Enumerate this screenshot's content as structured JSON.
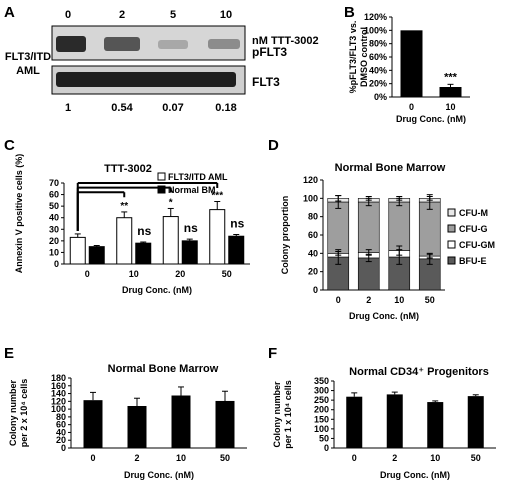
{
  "panels": {
    "A": {
      "letter": "A",
      "conc_header": [
        "0",
        "2",
        "5",
        "10"
      ],
      "conc_unit": "nM TTT-3002",
      "cell_label_line1": "FLT3/ITD",
      "cell_label_line2": "AML",
      "band_labels": [
        "pFLT3",
        "FLT3"
      ],
      "ratios": [
        "1",
        "0.54",
        "0.07",
        "0.18"
      ]
    },
    "B": {
      "letter": "B"
    },
    "C": {
      "letter": "C"
    },
    "D": {
      "letter": "D"
    },
    "E": {
      "letter": "E"
    },
    "F": {
      "letter": "F"
    }
  },
  "chart_data": [
    {
      "id": "B",
      "type": "bar",
      "ylabel_line1": "%pFLT3/FLT3 vs.",
      "ylabel_line2": "DMSO control",
      "xlabel": "Drug Conc. (nM)",
      "categories": [
        "0",
        "10"
      ],
      "values": [
        100,
        15
      ],
      "errors": [
        0,
        4
      ],
      "ylim": [
        0,
        120
      ],
      "yticks": [
        "0%",
        "20%",
        "40%",
        "60%",
        "80%",
        "100%",
        "120%"
      ],
      "annotations": [
        "",
        "***"
      ],
      "bar_color": "#000000"
    },
    {
      "id": "C",
      "type": "bar",
      "title": "TTT-3002",
      "ylabel": "Annexin V positive cells (%)",
      "xlabel": "Drug Conc. (nM)",
      "categories": [
        "0",
        "10",
        "20",
        "50"
      ],
      "ylim": [
        0,
        70
      ],
      "yticks": [
        "0",
        "10",
        "20",
        "30",
        "40",
        "50",
        "60",
        "70"
      ],
      "series": [
        {
          "name": "FLT3/ITD AML",
          "values": [
            23,
            40,
            41,
            47
          ],
          "errors": [
            3,
            5,
            7,
            7
          ],
          "color": "#ffffff",
          "annotations": [
            "",
            "**",
            "*",
            "***"
          ]
        },
        {
          "name": "Normal BM",
          "values": [
            15,
            18,
            20,
            24
          ],
          "errors": [
            1,
            1,
            1.5,
            1.5
          ],
          "color": "#000000",
          "annotations": [
            "",
            "ns",
            "ns",
            "ns"
          ]
        }
      ]
    },
    {
      "id": "D",
      "type": "bar",
      "title": "Normal Bone Marrow",
      "ylabel": "Colony proportion",
      "xlabel": "Drug Conc. (nM)",
      "categories": [
        "0",
        "2",
        "10",
        "50"
      ],
      "ylim": [
        0,
        120
      ],
      "yticks": [
        "0",
        "20",
        "40",
        "60",
        "80",
        "100",
        "120"
      ],
      "stacked": true,
      "series": [
        {
          "name": "BFU-E",
          "values": [
            36,
            35,
            36,
            34
          ],
          "errors": [
            8,
            4,
            8,
            6
          ],
          "color": "#5a5a5a"
        },
        {
          "name": "CFU-GM",
          "values": [
            4,
            6,
            7,
            3
          ],
          "errors": [
            2,
            3,
            5,
            2
          ],
          "color": "#ffffff"
        },
        {
          "name": "CFU-G",
          "values": [
            56,
            55,
            53,
            59
          ],
          "errors": [
            7,
            4,
            4,
            8
          ],
          "color": "#9e9e9e"
        },
        {
          "name": "CFU-M",
          "values": [
            4,
            4,
            4,
            4
          ],
          "errors": [
            3,
            2,
            2,
            2
          ],
          "color": "#e8e8e8"
        }
      ],
      "legend_order": [
        "CFU-M",
        "CFU-G",
        "CFU-GM",
        "BFU-E"
      ]
    },
    {
      "id": "E",
      "type": "bar",
      "title": "Normal Bone Marrow",
      "ylabel_line1": "Colony number",
      "ylabel_line2": "per 2 x 10⁴ cells",
      "xlabel": "Drug Conc. (nM)",
      "categories": [
        "0",
        "2",
        "10",
        "50"
      ],
      "values": [
        123,
        108,
        135,
        121
      ],
      "errors": [
        20,
        20,
        22,
        25
      ],
      "ylim": [
        0,
        180
      ],
      "yticks": [
        "0",
        "20",
        "40",
        "60",
        "80",
        "100",
        "120",
        "140",
        "160",
        "180"
      ],
      "bar_color": "#000000"
    },
    {
      "id": "F",
      "type": "bar",
      "title": "Normal CD34⁺ Progenitors",
      "ylabel_line1": "Colony number",
      "ylabel_line2": "per 1 x 10⁴ cells",
      "xlabel": "Drug Conc. (nM)",
      "categories": [
        "0",
        "2",
        "10",
        "50"
      ],
      "values": [
        268,
        280,
        240,
        271
      ],
      "errors": [
        20,
        12,
        6,
        7
      ],
      "ylim": [
        0,
        350
      ],
      "yticks": [
        "0",
        "50",
        "100",
        "150",
        "200",
        "250",
        "300",
        "350"
      ],
      "bar_color": "#000000"
    }
  ]
}
